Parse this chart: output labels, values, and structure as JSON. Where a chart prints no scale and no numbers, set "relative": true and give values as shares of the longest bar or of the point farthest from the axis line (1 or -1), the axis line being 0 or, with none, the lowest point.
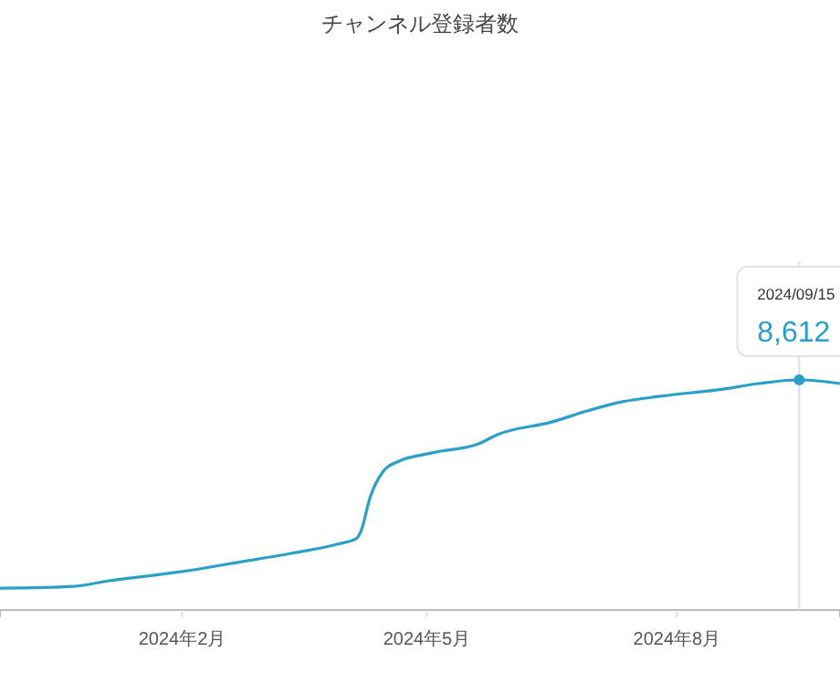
{
  "chart_data": {
    "type": "line",
    "title": "チャンネル登録者数",
    "relative": true,
    "marker": "none",
    "x": [
      "2023-11-26",
      "2023-12-23",
      "2024-01-05",
      "2024-02-01",
      "2024-02-21",
      "2024-03-12",
      "2024-03-29",
      "2024-04-05",
      "2024-04-07",
      "2024-04-10",
      "2024-04-15",
      "2024-04-20",
      "2024-05-03",
      "2024-05-20",
      "2024-05-27",
      "2024-06-16",
      "2024-06-29",
      "2024-07-12",
      "2024-07-26",
      "2024-08-18",
      "2024-08-31",
      "2024-09-15",
      "2024-09-30"
    ],
    "series": [
      {
        "color": "#2a9fc9",
        "values": [
          0.095,
          0.103,
          0.127,
          0.167,
          0.206,
          0.246,
          0.286,
          0.31,
          0.349,
          0.484,
          0.603,
          0.643,
          0.683,
          0.722,
          0.762,
          0.817,
          0.865,
          0.905,
          0.929,
          0.96,
          0.984,
          1.0,
          0.984
        ]
      }
    ],
    "xlim": [
      "2023-11-26",
      "2024-09-30"
    ],
    "xticks": [
      {
        "value": "2024-02-01",
        "label": "2024年2月"
      },
      {
        "value": "2024-05-01",
        "label": "2024年5月"
      },
      {
        "value": "2024-08-01",
        "label": "2024年8月"
      }
    ],
    "tick_labels": "x",
    "ref_lines": [
      {
        "axis": "x",
        "value": "2024-09-15",
        "color": "#e0e0e0"
      }
    ],
    "annotations": [
      "2024/09/15",
      {
        "text": "8,612",
        "x": "2024-09-15",
        "y": 1.0
      }
    ]
  }
}
